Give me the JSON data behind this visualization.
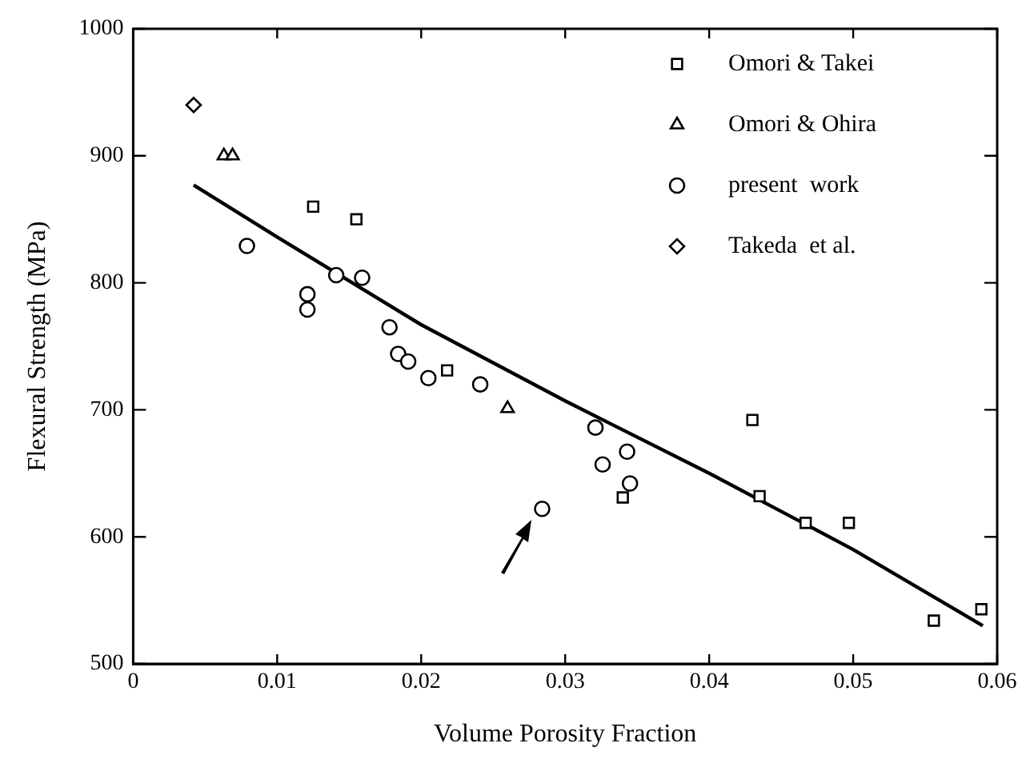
{
  "chart_data": {
    "type": "scatter",
    "xlabel": "Volume Porosity Fraction",
    "ylabel": "Flexural Strength (MPa)",
    "xlim": [
      0,
      0.06
    ],
    "xticks": [
      0,
      0.01,
      0.02,
      0.03,
      0.04,
      0.05,
      0.06
    ],
    "ylim": [
      500,
      1000
    ],
    "yticks": [
      500,
      600,
      700,
      800,
      900,
      1000
    ],
    "grid": false,
    "legend": "top right",
    "series": [
      {
        "name": "Omori & Takei",
        "marker": "square",
        "color": "#000000",
        "x": [
          0.0125,
          0.0155,
          0.0218,
          0.034,
          0.043,
          0.0435,
          0.0467,
          0.0497,
          0.0556,
          0.0589
        ],
        "values": [
          860,
          850,
          731,
          631,
          692,
          632,
          611,
          611,
          534,
          543
        ]
      },
      {
        "name": "Omori & Ohira",
        "marker": "triangle",
        "color": "#000000",
        "x": [
          0.0063,
          0.0069,
          0.026
        ],
        "values": [
          900,
          900,
          701
        ]
      },
      {
        "name": "present  work",
        "marker": "circle",
        "color": "#000000",
        "x": [
          0.0079,
          0.0121,
          0.0121,
          0.0141,
          0.0159,
          0.0178,
          0.0184,
          0.0191,
          0.0205,
          0.0241,
          0.0284,
          0.0321,
          0.0326,
          0.0343,
          0.0345
        ],
        "values": [
          829,
          791,
          779,
          806,
          804,
          765,
          744,
          738,
          725,
          720,
          622,
          686,
          657,
          667,
          642
        ]
      },
      {
        "name": "Takeda  et al.",
        "marker": "diamond",
        "color": "#000000",
        "x": [
          0.0042
        ],
        "values": [
          940
        ]
      },
      {
        "type": "line",
        "marker": "none",
        "line_style": "solid",
        "color": "#000000",
        "x": [
          0.0042,
          0.01,
          0.02,
          0.03,
          0.04,
          0.05,
          0.059
        ],
        "values": [
          877,
          836,
          767,
          707,
          650,
          590,
          530
        ]
      }
    ]
  }
}
